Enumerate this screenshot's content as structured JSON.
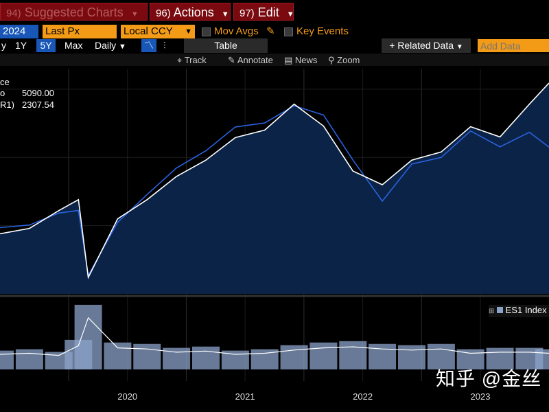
{
  "top_bar": {
    "suggested": {
      "num": "94)",
      "label": "Suggested Charts"
    },
    "actions": {
      "num": "96)",
      "label": "Actions"
    },
    "edit": {
      "num": "97)",
      "label": "Edit"
    }
  },
  "options": {
    "date_fragment": "2024",
    "field": "Last Px",
    "currency": "Local CCY",
    "mov_avgs": "Mov Avgs",
    "key_events": "Key Events"
  },
  "range_bar": {
    "ranges": [
      "1Y",
      "5Y",
      "Max"
    ],
    "active_range": "5Y",
    "frequency": "Daily",
    "table": "Table",
    "related": "Related Data",
    "add_data_placeholder": "Add Data"
  },
  "tools": [
    "Track",
    "Annotate",
    "News",
    "Zoom"
  ],
  "legend": {
    "title_fragment": "ce",
    "row1_fragment": "o",
    "row1_value": "5090.00",
    "row2_fragment": "R1)",
    "row2_value": "2307.54"
  },
  "volume_legend": "ES1 Index",
  "watermark": "知乎 @金丝",
  "colors": {
    "price": "#ffffff",
    "ratio": "#2a62e0",
    "area": "#0b2346",
    "volume": "#8ba3c9"
  },
  "chart_data": [
    {
      "type": "line",
      "x": [
        "2019-06",
        "2019-09",
        "2019-12",
        "2020-02",
        "2020-03",
        "2020-06",
        "2020-09",
        "2020-12",
        "2021-03",
        "2021-06",
        "2021-09",
        "2021-12",
        "2022-03",
        "2022-06",
        "2022-09",
        "2022-12",
        "2023-03",
        "2023-06",
        "2023-09",
        "2023-12",
        "2024-02"
      ],
      "series": [
        {
          "values": [
            2880,
            2960,
            3220,
            3380,
            2240,
            3100,
            3380,
            3720,
            3960,
            4290,
            4400,
            4780,
            4460,
            3800,
            3600,
            3960,
            4080,
            4450,
            4300,
            4780,
            5090
          ]
        },
        {
          "values": [
            1700,
            1720,
            1810,
            1830,
            1340,
            1740,
            1950,
            2150,
            2280,
            2460,
            2490,
            2620,
            2550,
            2210,
            1900,
            2180,
            2230,
            2430,
            2310,
            2420,
            2307.54
          ]
        }
      ],
      "xlabels": [
        "2020",
        "2021",
        "2022",
        "2023"
      ],
      "grid": true
    },
    {
      "type": "bar",
      "title": "ES1 Index",
      "x": [
        "2019-06",
        "2019-09",
        "2019-12",
        "2020-02",
        "2020-03",
        "2020-06",
        "2020-09",
        "2020-12",
        "2021-03",
        "2021-06",
        "2021-09",
        "2021-12",
        "2022-03",
        "2022-06",
        "2022-09",
        "2022-12",
        "2023-03",
        "2023-06",
        "2023-09",
        "2023-12",
        "2024-02"
      ],
      "values": [
        1.4,
        1.5,
        1.3,
        2.2,
        4.8,
        2.0,
        1.9,
        1.6,
        1.7,
        1.4,
        1.5,
        1.8,
        2.0,
        2.1,
        1.9,
        1.8,
        1.9,
        1.5,
        1.6,
        1.6,
        1.5
      ]
    }
  ]
}
